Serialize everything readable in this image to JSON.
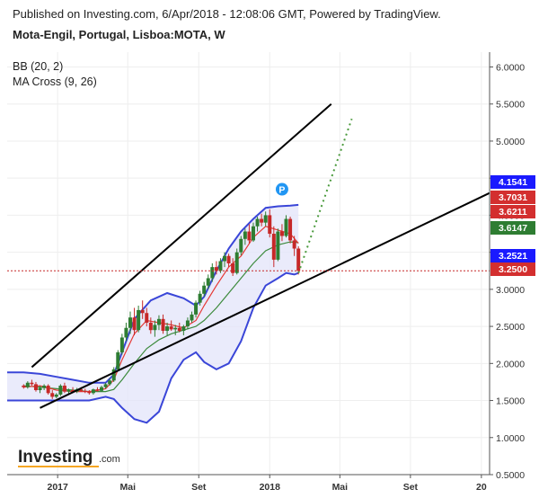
{
  "header": {
    "published": "Published on Investing.com, 6/Apr/2018 - 12:08:06 GMT, Powered by TradingView.",
    "symbol": "Mota-Engil, Portugal, Lisboa:MOTA, W"
  },
  "indicators": [
    "BB (20, 2)",
    "MA Cross (9, 26)"
  ],
  "logo": {
    "brand": "Investing",
    "suffix": ".com"
  },
  "marker": {
    "label": "P"
  },
  "colors": {
    "up": "#2e7d32",
    "down": "#c62828",
    "bb_line": "#3a46d8",
    "bb_fill": "#e3e4fa",
    "ma_fast": "#e53935",
    "ma_slow": "#3c8a3c",
    "trend": "#000000",
    "projection": "#4a9a3c",
    "current_line": "#c62828"
  },
  "chart_data": {
    "type": "candlestick",
    "title": "Mota-Engil, Portugal, Lisboa:MOTA, W",
    "y_ticks": [
      "0.5000",
      "1.0000",
      "1.5000",
      "2.0000",
      "2.5000",
      "3.0000",
      "3.5000",
      "4.0000",
      "4.5000",
      "5.0000",
      "5.5000",
      "6.0000"
    ],
    "y_range": [
      0.5,
      6.2
    ],
    "x_ticks": [
      {
        "label": "2017",
        "t": 8.3
      },
      {
        "label": "Mai",
        "t": 25.4
      },
      {
        "label": "Set",
        "t": 42.7
      },
      {
        "label": "2018",
        "t": 60.0
      },
      {
        "label": "Mai",
        "t": 77.1
      },
      {
        "label": "Set",
        "t": 94.3
      },
      {
        "label": "20",
        "t": 111.6
      }
    ],
    "x_range": [
      -4,
      113.6
    ],
    "price_labels": [
      {
        "value": "4.1541",
        "color": "#1a1aff"
      },
      {
        "value": "3.7031",
        "color": "#d32f2f"
      },
      {
        "value": "3.6211",
        "color": "#d32f2f"
      },
      {
        "value": "3.6147",
        "color": "#2e7d32"
      },
      {
        "value": "3.2521",
        "color": "#1a1aff"
      },
      {
        "value": "3.2500",
        "color": "#d32f2f"
      }
    ],
    "current_price": 3.25,
    "candles": [
      [
        1.7,
        1.72,
        1.66,
        1.68
      ],
      [
        1.68,
        1.76,
        1.66,
        1.74
      ],
      [
        1.74,
        1.78,
        1.7,
        1.72
      ],
      [
        1.72,
        1.75,
        1.62,
        1.64
      ],
      [
        1.64,
        1.7,
        1.6,
        1.67
      ],
      [
        1.67,
        1.72,
        1.64,
        1.7
      ],
      [
        1.7,
        1.72,
        1.58,
        1.6
      ],
      [
        1.6,
        1.64,
        1.52,
        1.55
      ],
      [
        1.55,
        1.6,
        1.53,
        1.58
      ],
      [
        1.58,
        1.72,
        1.56,
        1.7
      ],
      [
        1.7,
        1.74,
        1.6,
        1.62
      ],
      [
        1.62,
        1.66,
        1.58,
        1.64
      ],
      [
        1.64,
        1.68,
        1.6,
        1.62
      ],
      [
        1.62,
        1.67,
        1.6,
        1.65
      ],
      [
        1.65,
        1.68,
        1.62,
        1.63
      ],
      [
        1.63,
        1.66,
        1.6,
        1.62
      ],
      [
        1.62,
        1.64,
        1.58,
        1.6
      ],
      [
        1.6,
        1.66,
        1.58,
        1.65
      ],
      [
        1.65,
        1.68,
        1.62,
        1.63
      ],
      [
        1.63,
        1.7,
        1.62,
        1.68
      ],
      [
        1.68,
        1.74,
        1.66,
        1.72
      ],
      [
        1.72,
        1.8,
        1.7,
        1.77
      ],
      [
        1.77,
        1.95,
        1.75,
        1.92
      ],
      [
        1.92,
        2.18,
        1.9,
        2.15
      ],
      [
        2.15,
        2.4,
        2.12,
        2.35
      ],
      [
        2.35,
        2.55,
        2.3,
        2.48
      ],
      [
        2.48,
        2.7,
        2.4,
        2.62
      ],
      [
        2.62,
        2.75,
        2.38,
        2.45
      ],
      [
        2.45,
        2.78,
        2.42,
        2.72
      ],
      [
        2.72,
        2.85,
        2.6,
        2.68
      ],
      [
        2.68,
        2.75,
        2.5,
        2.55
      ],
      [
        2.55,
        2.62,
        2.4,
        2.45
      ],
      [
        2.45,
        2.58,
        2.36,
        2.52
      ],
      [
        2.52,
        2.65,
        2.45,
        2.6
      ],
      [
        2.6,
        2.66,
        2.4,
        2.44
      ],
      [
        2.44,
        2.55,
        2.38,
        2.5
      ],
      [
        2.5,
        2.58,
        2.44,
        2.46
      ],
      [
        2.46,
        2.52,
        2.38,
        2.48
      ],
      [
        2.48,
        2.55,
        2.42,
        2.44
      ],
      [
        2.44,
        2.52,
        2.38,
        2.5
      ],
      [
        2.5,
        2.62,
        2.46,
        2.58
      ],
      [
        2.58,
        2.7,
        2.55,
        2.66
      ],
      [
        2.66,
        2.85,
        2.62,
        2.82
      ],
      [
        2.82,
        2.98,
        2.78,
        2.94
      ],
      [
        2.94,
        3.1,
        2.9,
        3.05
      ],
      [
        3.05,
        3.2,
        3.0,
        3.15
      ],
      [
        3.15,
        3.35,
        3.1,
        3.3
      ],
      [
        3.3,
        3.38,
        3.2,
        3.25
      ],
      [
        3.25,
        3.42,
        3.22,
        3.38
      ],
      [
        3.38,
        3.5,
        3.3,
        3.45
      ],
      [
        3.45,
        3.48,
        3.3,
        3.35
      ],
      [
        3.35,
        3.42,
        3.18,
        3.22
      ],
      [
        3.22,
        3.55,
        3.2,
        3.5
      ],
      [
        3.5,
        3.72,
        3.46,
        3.68
      ],
      [
        3.68,
        3.82,
        3.6,
        3.78
      ],
      [
        3.78,
        3.88,
        3.62,
        3.66
      ],
      [
        3.66,
        3.9,
        3.64,
        3.85
      ],
      [
        3.85,
        3.98,
        3.78,
        3.95
      ],
      [
        3.95,
        4.02,
        3.85,
        3.9
      ],
      [
        3.9,
        4.05,
        3.85,
        4.0
      ],
      [
        4.0,
        4.08,
        3.7,
        3.75
      ],
      [
        3.75,
        3.85,
        3.3,
        3.4
      ],
      [
        3.4,
        3.82,
        3.38,
        3.78
      ],
      [
        3.78,
        3.88,
        3.65,
        3.72
      ],
      [
        3.72,
        4.0,
        3.7,
        3.95
      ],
      [
        3.95,
        3.98,
        3.62,
        3.66
      ],
      [
        3.66,
        3.72,
        3.45,
        3.55
      ],
      [
        3.55,
        3.58,
        3.2,
        3.25
      ]
    ],
    "bb_upper": [
      [
        -4,
        1.88
      ],
      [
        0,
        1.88
      ],
      [
        4,
        1.86
      ],
      [
        8,
        1.82
      ],
      [
        12,
        1.78
      ],
      [
        16,
        1.74
      ],
      [
        20,
        1.74
      ],
      [
        22,
        1.85
      ],
      [
        24,
        2.15
      ],
      [
        27,
        2.6
      ],
      [
        31,
        2.85
      ],
      [
        35,
        2.95
      ],
      [
        39,
        2.88
      ],
      [
        42,
        2.78
      ],
      [
        44,
        2.9
      ],
      [
        47,
        3.25
      ],
      [
        50,
        3.55
      ],
      [
        53,
        3.78
      ],
      [
        56,
        3.95
      ],
      [
        59,
        4.1
      ],
      [
        62,
        4.12
      ],
      [
        65,
        4.13
      ],
      [
        67,
        4.14
      ]
    ],
    "bb_lower": [
      [
        -4,
        1.5
      ],
      [
        0,
        1.5
      ],
      [
        4,
        1.5
      ],
      [
        8,
        1.5
      ],
      [
        12,
        1.5
      ],
      [
        16,
        1.5
      ],
      [
        20,
        1.55
      ],
      [
        22,
        1.52
      ],
      [
        24,
        1.4
      ],
      [
        27,
        1.25
      ],
      [
        30,
        1.2
      ],
      [
        33,
        1.35
      ],
      [
        36,
        1.8
      ],
      [
        39,
        2.05
      ],
      [
        42,
        2.15
      ],
      [
        44,
        2.02
      ],
      [
        47,
        1.92
      ],
      [
        50,
        2.0
      ],
      [
        53,
        2.3
      ],
      [
        56,
        2.75
      ],
      [
        59,
        3.05
      ],
      [
        62,
        3.15
      ],
      [
        64,
        3.22
      ],
      [
        66,
        3.2
      ],
      [
        67,
        3.22
      ]
    ],
    "ma_fast": [
      [
        0,
        1.68
      ],
      [
        4,
        1.7
      ],
      [
        8,
        1.64
      ],
      [
        12,
        1.62
      ],
      [
        16,
        1.62
      ],
      [
        20,
        1.66
      ],
      [
        22,
        1.78
      ],
      [
        24,
        2.05
      ],
      [
        27,
        2.4
      ],
      [
        30,
        2.58
      ],
      [
        33,
        2.55
      ],
      [
        36,
        2.52
      ],
      [
        39,
        2.48
      ],
      [
        42,
        2.58
      ],
      [
        44,
        2.78
      ],
      [
        47,
        3.05
      ],
      [
        50,
        3.3
      ],
      [
        53,
        3.45
      ],
      [
        56,
        3.7
      ],
      [
        59,
        3.85
      ],
      [
        62,
        3.8
      ],
      [
        65,
        3.75
      ],
      [
        67,
        3.62
      ]
    ],
    "ma_slow": [
      [
        0,
        1.7
      ],
      [
        4,
        1.68
      ],
      [
        8,
        1.66
      ],
      [
        12,
        1.64
      ],
      [
        16,
        1.62
      ],
      [
        20,
        1.62
      ],
      [
        22,
        1.65
      ],
      [
        24,
        1.78
      ],
      [
        27,
        2.0
      ],
      [
        30,
        2.2
      ],
      [
        33,
        2.32
      ],
      [
        36,
        2.4
      ],
      [
        39,
        2.45
      ],
      [
        42,
        2.5
      ],
      [
        44,
        2.58
      ],
      [
        47,
        2.75
      ],
      [
        50,
        2.95
      ],
      [
        53,
        3.15
      ],
      [
        56,
        3.35
      ],
      [
        59,
        3.52
      ],
      [
        62,
        3.6
      ],
      [
        65,
        3.64
      ],
      [
        67,
        3.63
      ]
    ],
    "trendlines": [
      {
        "name": "channel-top",
        "points": [
          [
            2,
            1.95
          ],
          [
            75,
            5.5
          ]
        ]
      },
      {
        "name": "channel-bottom",
        "points": [
          [
            4,
            1.4
          ],
          [
            113.6,
            4.3
          ]
        ]
      }
    ],
    "projection": {
      "points": [
        [
          67,
          3.22
        ],
        [
          80,
          5.3
        ]
      ]
    },
    "marker_point": [
      63,
      4.35
    ]
  }
}
